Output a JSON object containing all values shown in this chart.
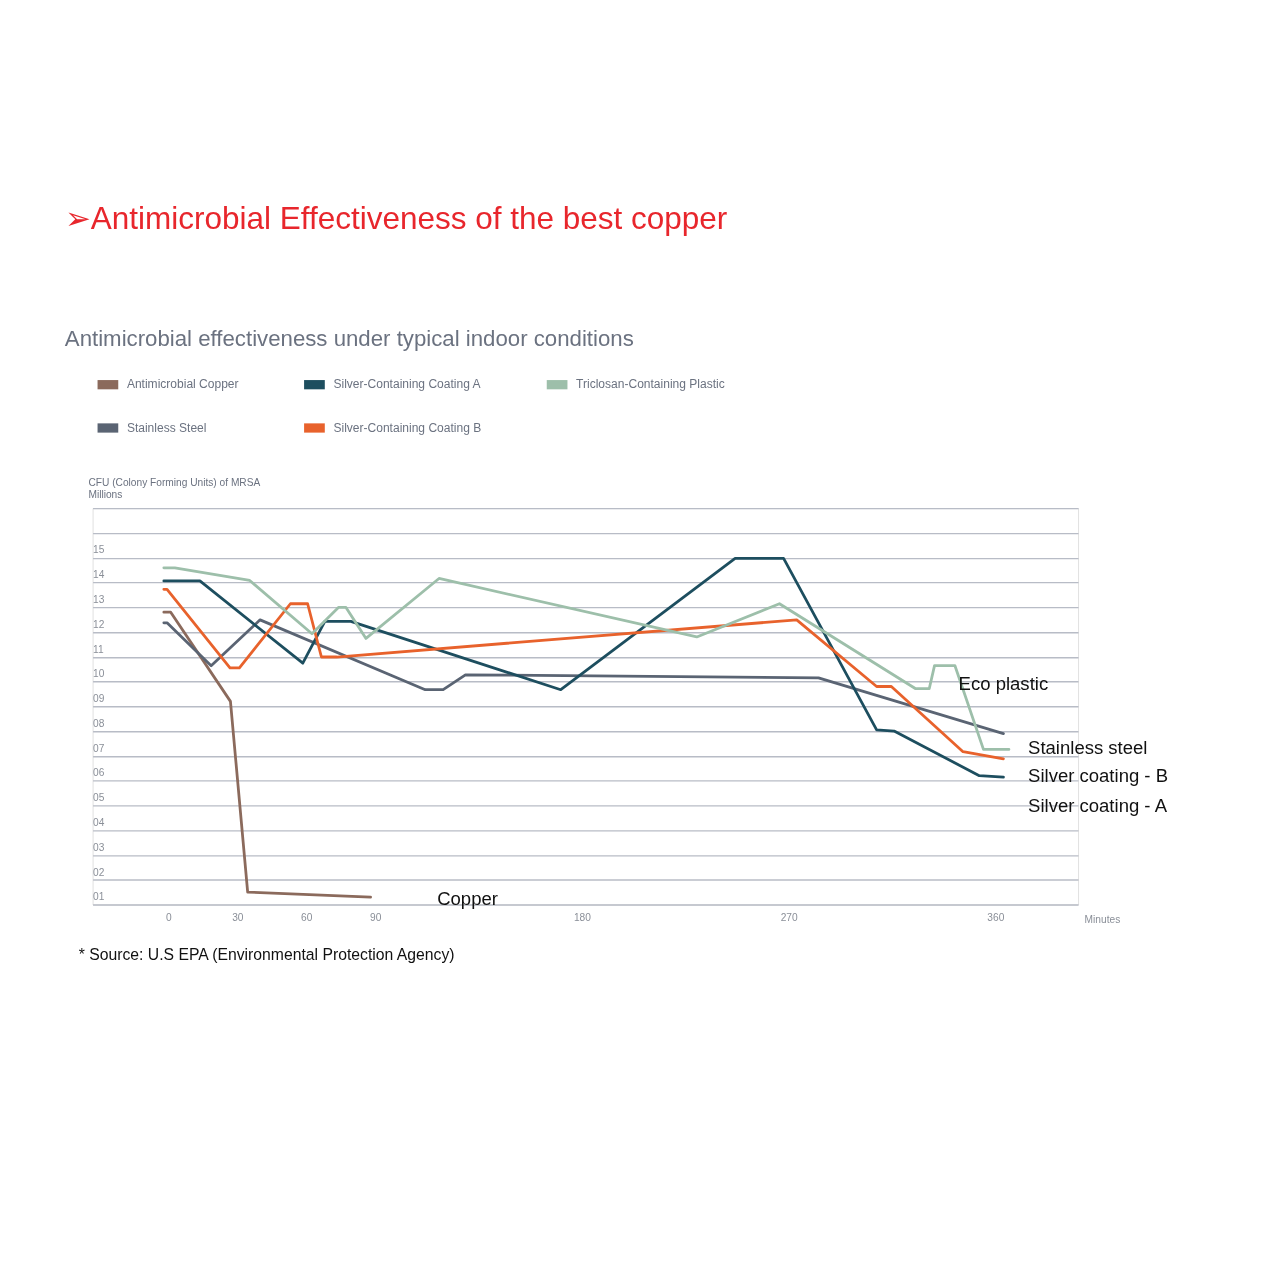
{
  "chart_data": {
    "type": "line",
    "title": "➢Antimicrobial Effectiveness of the best copper",
    "subtitle": "Antimicrobial effectiveness under typical indoor conditions",
    "ylabel": "CFU (Colony Forming Units) of MRSA\nMillions",
    "xlabel": "Minutes",
    "legend": "top left",
    "grid": "y",
    "line_style": "solid",
    "xlim": [
      -33,
      396
    ],
    "xticks": [
      0,
      30,
      60,
      90,
      180,
      270,
      360
    ],
    "ylim": [
      1,
      17
    ],
    "yticks": [
      {
        "value": 1,
        "label": "01"
      },
      {
        "value": 2,
        "label": "02"
      },
      {
        "value": 3,
        "label": "03"
      },
      {
        "value": 4,
        "label": "04"
      },
      {
        "value": 5,
        "label": "05"
      },
      {
        "value": 6,
        "label": "06"
      },
      {
        "value": 7,
        "label": "07"
      },
      {
        "value": 8,
        "label": "08"
      },
      {
        "value": 9,
        "label": "09"
      },
      10,
      11,
      12,
      13,
      14,
      15,
      {
        "value": 16,
        "label": null
      },
      {
        "value": 17,
        "label": null
      }
    ],
    "series": [
      {
        "name": "Antimicrobial Copper",
        "color": "#8b6a5c",
        "x": [
          -2,
          1,
          27,
          34.5,
          88
        ],
        "values": [
          12.8,
          12.8,
          9.2,
          1.5,
          1.3
        ]
      },
      {
        "name": "Stainless Steel",
        "color": "#5a6473",
        "x": [
          -2,
          -0.6,
          18.6,
          39.9,
          111.8,
          119.6,
          129.3,
          283,
          363.5
        ],
        "values": [
          12.37,
          12.37,
          10.64,
          12.49,
          9.67,
          9.67,
          10.27,
          10.15,
          7.9
        ]
      },
      {
        "name": "Silver-Containing Coating A",
        "color": "#1d4e5f",
        "x": [
          -2,
          13.7,
          58.5,
          68.1,
          79.4,
          170.8,
          246.7,
          267.8,
          308.3,
          315.9,
          353,
          363.5
        ],
        "values": [
          14.06,
          14.06,
          10.74,
          12.43,
          12.43,
          9.67,
          14.97,
          14.97,
          8.05,
          8.0,
          6.2,
          6.14
        ]
      },
      {
        "name": "Silver-Containing Coating B",
        "color": "#e8622c",
        "x": [
          -2,
          -0.6,
          26.8,
          30.9,
          53.1,
          60.6,
          66.6,
          73.3,
          273.5,
          308.3,
          314.7,
          345.9,
          363.5
        ],
        "values": [
          13.72,
          13.72,
          10.55,
          10.55,
          13.14,
          13.14,
          10.99,
          10.99,
          12.49,
          9.8,
          9.8,
          7.17,
          6.88
        ]
      },
      {
        "name": "Triclosan-Containing Plastic",
        "color": "#9dbfaa",
        "x": [
          -2,
          2.8,
          35.4,
          62.5,
          74,
          77.3,
          86,
          117.8,
          230,
          266,
          325.3,
          331.2,
          333.5,
          342.4,
          354.8,
          365.9
        ],
        "values": [
          14.59,
          14.59,
          14.08,
          11.93,
          12.99,
          12.99,
          11.74,
          14.16,
          11.8,
          13.14,
          9.71,
          9.71,
          10.64,
          10.64,
          7.26,
          7.26
        ]
      }
    ],
    "annotations": [
      "Copper",
      "Eco plastic",
      "Stainless steel",
      "Silver coating - B",
      "Silver coating - A",
      "* Source: U.S EPA (Environmental Protection Agency)"
    ]
  }
}
